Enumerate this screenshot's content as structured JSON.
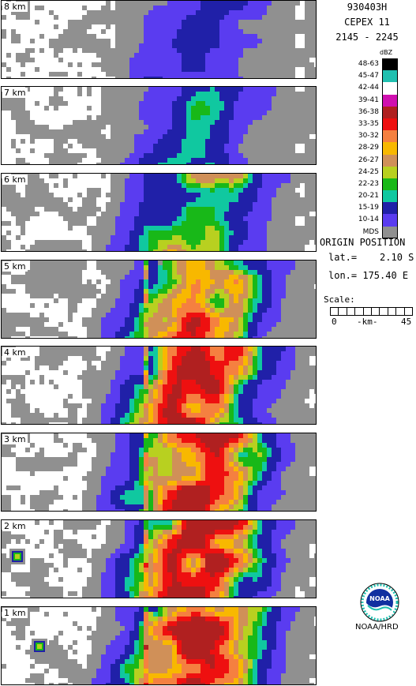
{
  "header": {
    "flight_id": "930403H",
    "experiment": "CEPEX 11",
    "time_range": "2145 - 2245"
  },
  "panels": [
    {
      "label": "8 km"
    },
    {
      "label": "7 km"
    },
    {
      "label": "6 km"
    },
    {
      "label": "5 km"
    },
    {
      "label": "4 km"
    },
    {
      "label": "3 km"
    },
    {
      "label": "2 km"
    },
    {
      "label": "1 km"
    }
  ],
  "legend": {
    "unit": "dBZ",
    "items": [
      {
        "label": "48-63",
        "color": "#000000"
      },
      {
        "label": "45-47",
        "color": "#20c0b0"
      },
      {
        "label": "42-44",
        "color": "#ffffff"
      },
      {
        "label": "39-41",
        "color": "#d010b0"
      },
      {
        "label": "36-38",
        "color": "#b02020"
      },
      {
        "label": "33-35",
        "color": "#ee1010"
      },
      {
        "label": "30-32",
        "color": "#f58040"
      },
      {
        "label": "28-29",
        "color": "#f8b800"
      },
      {
        "label": "26-27",
        "color": "#d09058"
      },
      {
        "label": "24-25",
        "color": "#b8d020"
      },
      {
        "label": "22-23",
        "color": "#18b818"
      },
      {
        "label": "20-21",
        "color": "#10c8a0"
      },
      {
        "label": "15-19",
        "color": "#2020a8"
      },
      {
        "label": "10-14",
        "color": "#5a3cf0"
      },
      {
        "label": "MDS",
        "color": "#909090"
      }
    ]
  },
  "origin": {
    "title": "ORIGIN POSITION",
    "lat": "lat.=    2.10 S",
    "lon": "lon.= 175.40 E"
  },
  "scale": {
    "title": "Scale:",
    "min": "0",
    "unit": "-km-",
    "max": "45"
  },
  "logo": {
    "text": "NOAA/HRD",
    "emblem": "NOAA"
  }
}
